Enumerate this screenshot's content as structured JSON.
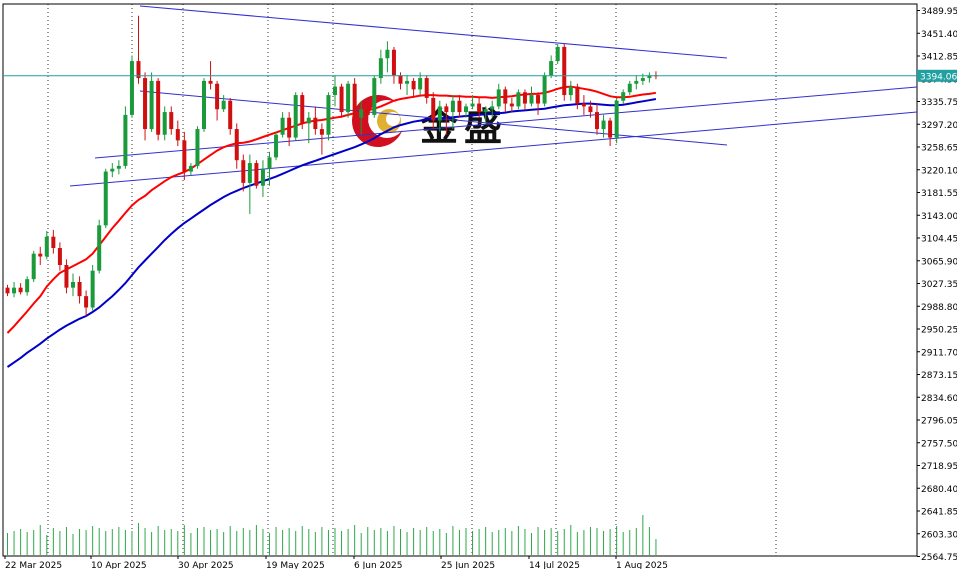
{
  "chart_data": {
    "type": "candlestick",
    "symbol_price_tag": "3394.06",
    "current_price": 3394.06,
    "ylim": [
      2545.4,
      3509.3
    ],
    "y_ticks": [
      "3489.95",
      "3451.40",
      "3412.85",
      "3374.30",
      "3335.75",
      "3297.20",
      "3258.65",
      "3220.10",
      "3181.55",
      "3143.00",
      "3104.45",
      "3065.90",
      "3027.35",
      "2988.80",
      "2950.25",
      "2911.70",
      "2873.15",
      "2834.60",
      "2796.05",
      "2757.50",
      "2718.95",
      "2680.40",
      "2641.85",
      "2603.30",
      "2564.75"
    ],
    "x_ticks": [
      "22 Mar 2025",
      "10 Apr 2025",
      "30 Apr 2025",
      "19 May 2025",
      "6 Jun 2025",
      "25 Jun 2025",
      "14 Jul 2025",
      "1 Aug 2025"
    ],
    "candles": [
      [
        3020,
        3025,
        3005,
        3010
      ],
      [
        3010,
        3030,
        3003,
        3020
      ],
      [
        3020,
        3028,
        3008,
        3012
      ],
      [
        3012,
        3040,
        3006,
        3035
      ],
      [
        3035,
        3085,
        3030,
        3080
      ],
      [
        3080,
        3092,
        3060,
        3075
      ],
      [
        3075,
        3120,
        3070,
        3110
      ],
      [
        3110,
        3122,
        3080,
        3090
      ],
      [
        3090,
        3100,
        3050,
        3060
      ],
      [
        3060,
        3070,
        3010,
        3020
      ],
      [
        3020,
        3045,
        3005,
        3030
      ],
      [
        3030,
        3040,
        2992,
        3005
      ],
      [
        3005,
        3015,
        2970,
        2985
      ],
      [
        2985,
        3060,
        2980,
        3050
      ],
      [
        3050,
        3140,
        3045,
        3130
      ],
      [
        3130,
        3230,
        3125,
        3225
      ],
      [
        3225,
        3240,
        3215,
        3230
      ],
      [
        3230,
        3245,
        3220,
        3235
      ],
      [
        3235,
        3340,
        3230,
        3325
      ],
      [
        3325,
        3430,
        3320,
        3420
      ],
      [
        3420,
        3500,
        3380,
        3390
      ],
      [
        3390,
        3400,
        3280,
        3300
      ],
      [
        3300,
        3400,
        3295,
        3385
      ],
      [
        3385,
        3390,
        3280,
        3290
      ],
      [
        3290,
        3340,
        3280,
        3330
      ],
      [
        3330,
        3340,
        3290,
        3300
      ],
      [
        3300,
        3315,
        3270,
        3280
      ],
      [
        3280,
        3295,
        3210,
        3225
      ],
      [
        3225,
        3240,
        3218,
        3235
      ],
      [
        3235,
        3305,
        3230,
        3300
      ],
      [
        3300,
        3390,
        3295,
        3385
      ],
      [
        3385,
        3420,
        3370,
        3380
      ],
      [
        3380,
        3385,
        3315,
        3335
      ],
      [
        3335,
        3360,
        3330,
        3350
      ],
      [
        3350,
        3355,
        3290,
        3300
      ],
      [
        3300,
        3310,
        3230,
        3245
      ],
      [
        3245,
        3255,
        3190,
        3205
      ],
      [
        3205,
        3255,
        3150,
        3240
      ],
      [
        3240,
        3245,
        3195,
        3200
      ],
      [
        3200,
        3245,
        3180,
        3230
      ],
      [
        3230,
        3260,
        3200,
        3250
      ],
      [
        3250,
        3295,
        3245,
        3290
      ],
      [
        3290,
        3330,
        3285,
        3320
      ],
      [
        3320,
        3330,
        3270,
        3285
      ],
      [
        3285,
        3365,
        3280,
        3360
      ],
      [
        3360,
        3365,
        3300,
        3310
      ],
      [
        3310,
        3330,
        3275,
        3320
      ],
      [
        3320,
        3340,
        3290,
        3300
      ],
      [
        3300,
        3310,
        3255,
        3290
      ],
      [
        3290,
        3365,
        3280,
        3360
      ],
      [
        3360,
        3395,
        3340,
        3375
      ],
      [
        3375,
        3380,
        3320,
        3330
      ],
      [
        3330,
        3385,
        3320,
        3380
      ],
      [
        3380,
        3390,
        3300,
        3320
      ],
      [
        3320,
        3350,
        3290,
        3335
      ],
      [
        3335,
        3345,
        3315,
        3325
      ],
      [
        3325,
        3395,
        3320,
        3390
      ],
      [
        3390,
        3440,
        3380,
        3425
      ],
      [
        3425,
        3455,
        3400,
        3440
      ],
      [
        3440,
        3445,
        3380,
        3395
      ],
      [
        3395,
        3400,
        3370,
        3380
      ],
      [
        3380,
        3395,
        3360,
        3385
      ],
      [
        3385,
        3390,
        3355,
        3370
      ],
      [
        3370,
        3400,
        3360,
        3390
      ],
      [
        3390,
        3395,
        3345,
        3355
      ],
      [
        3355,
        3365,
        3300,
        3315
      ],
      [
        3315,
        3350,
        3295,
        3340
      ],
      [
        3340,
        3345,
        3290,
        3330
      ],
      [
        3330,
        3360,
        3300,
        3350
      ],
      [
        3350,
        3360,
        3320,
        3330
      ],
      [
        3330,
        3345,
        3320,
        3340
      ],
      [
        3340,
        3360,
        3335,
        3345
      ],
      [
        3345,
        3355,
        3320,
        3330
      ],
      [
        3330,
        3340,
        3310,
        3335
      ],
      [
        3335,
        3350,
        3320,
        3340
      ],
      [
        3340,
        3380,
        3335,
        3370
      ],
      [
        3370,
        3375,
        3330,
        3345
      ],
      [
        3345,
        3355,
        3330,
        3340
      ],
      [
        3340,
        3370,
        3335,
        3365
      ],
      [
        3365,
        3370,
        3335,
        3345
      ],
      [
        3345,
        3375,
        3340,
        3360
      ],
      [
        3360,
        3365,
        3325,
        3345
      ],
      [
        3345,
        3400,
        3340,
        3395
      ],
      [
        3395,
        3430,
        3390,
        3420
      ],
      [
        3420,
        3450,
        3415,
        3445
      ],
      [
        3445,
        3450,
        3350,
        3360
      ],
      [
        3360,
        3385,
        3350,
        3375
      ],
      [
        3375,
        3380,
        3335,
        3345
      ],
      [
        3345,
        3360,
        3325,
        3340
      ],
      [
        3340,
        3350,
        3320,
        3330
      ],
      [
        3330,
        3345,
        3290,
        3300
      ],
      [
        3300,
        3325,
        3285,
        3315
      ],
      [
        3315,
        3320,
        3270,
        3285
      ],
      [
        3285,
        3355,
        3275,
        3350
      ],
      [
        3350,
        3370,
        3345,
        3365
      ],
      [
        3365,
        3385,
        3360,
        3380
      ],
      [
        3380,
        3395,
        3370,
        3385
      ],
      [
        3385,
        3398,
        3378,
        3390
      ],
      [
        3390,
        3400,
        3382,
        3395
      ],
      [
        3395,
        3402,
        3388,
        3394
      ]
    ],
    "volume_levels": [
      22,
      24,
      26,
      23,
      25,
      30,
      20,
      27,
      24,
      28,
      21,
      26,
      25,
      29,
      27,
      24,
      26,
      28,
      25,
      24,
      32,
      27,
      23,
      29,
      25,
      26,
      24,
      30,
      22,
      27,
      28,
      25,
      26,
      23,
      29,
      24,
      27,
      25,
      30,
      26,
      22,
      28,
      25,
      27,
      24,
      29,
      26,
      23,
      28,
      25,
      27,
      24,
      26,
      30,
      22,
      28,
      25,
      27,
      24,
      29,
      26,
      23,
      27,
      25,
      28,
      24,
      26,
      22,
      29,
      25,
      27,
      24,
      26,
      28,
      23,
      25,
      27,
      24,
      29,
      26,
      22,
      28,
      25,
      27,
      24,
      26,
      30,
      23,
      25,
      28,
      27,
      24,
      26,
      29,
      23,
      25,
      27,
      40,
      28,
      16
    ],
    "indicators": [
      {
        "kind": "moving-average",
        "color": "#ff0000",
        "values": [
          2940,
          2952,
          2965,
          2978,
          2992,
          3005,
          3022,
          3035,
          3046,
          3052,
          3058,
          3064,
          3070,
          3080,
          3095,
          3110,
          3125,
          3138,
          3152,
          3165,
          3175,
          3182,
          3192,
          3200,
          3208,
          3215,
          3220,
          3224,
          3230,
          3238,
          3246,
          3254,
          3262,
          3268,
          3272,
          3275,
          3276,
          3278,
          3282,
          3286,
          3290,
          3294,
          3298,
          3302,
          3306,
          3310,
          3313,
          3315,
          3316,
          3318,
          3320,
          3322,
          3325,
          3328,
          3330,
          3333,
          3336,
          3340,
          3345,
          3350,
          3353,
          3355,
          3357,
          3359,
          3360,
          3360,
          3359,
          3359,
          3358,
          3358,
          3357,
          3357,
          3356,
          3356,
          3355,
          3356,
          3357,
          3358,
          3360,
          3361,
          3362,
          3362,
          3364,
          3367,
          3371,
          3374,
          3375,
          3373,
          3371,
          3369,
          3366,
          3362,
          3358,
          3356,
          3356,
          3357,
          3359,
          3361,
          3362,
          3364
        ]
      },
      {
        "kind": "moving-average",
        "color": "#0000c8",
        "values": [
          2880,
          2888,
          2896,
          2905,
          2913,
          2921,
          2930,
          2938,
          2946,
          2953,
          2959,
          2965,
          2970,
          2977,
          2985,
          2995,
          3005,
          3016,
          3028,
          3042,
          3056,
          3068,
          3080,
          3092,
          3104,
          3115,
          3125,
          3134,
          3142,
          3150,
          3158,
          3166,
          3173,
          3180,
          3186,
          3191,
          3196,
          3200,
          3204,
          3208,
          3212,
          3216,
          3221,
          3226,
          3231,
          3236,
          3240,
          3244,
          3248,
          3252,
          3256,
          3260,
          3264,
          3268,
          3273,
          3278,
          3284,
          3291,
          3297,
          3303,
          3307,
          3310,
          3313,
          3315,
          3317,
          3318,
          3319,
          3320,
          3321,
          3322,
          3323,
          3324,
          3325,
          3326,
          3327,
          3328,
          3329,
          3331,
          3332,
          3333,
          3334,
          3335,
          3336,
          3338,
          3340,
          3342,
          3343,
          3344,
          3345,
          3345,
          3344,
          3343,
          3342,
          3342,
          3343,
          3345,
          3347,
          3349,
          3351,
          3353
        ]
      }
    ],
    "watermark": "金盛"
  }
}
